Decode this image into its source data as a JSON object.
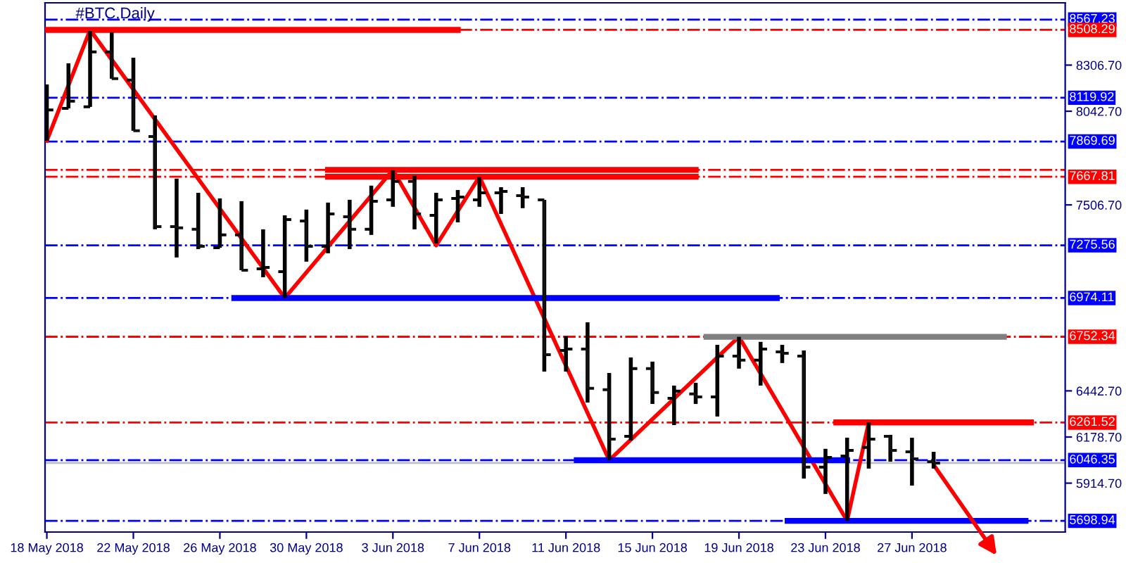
{
  "chart_data": {
    "type": "candlestick",
    "title": "#BTC,Daily",
    "x": [
      "2018-05-18",
      "2018-05-19",
      "2018-05-20",
      "2018-05-21",
      "2018-05-22",
      "2018-05-23",
      "2018-05-24",
      "2018-05-25",
      "2018-05-26",
      "2018-05-27",
      "2018-05-28",
      "2018-05-29",
      "2018-05-30",
      "2018-05-31",
      "2018-06-01",
      "2018-06-02",
      "2018-06-03",
      "2018-06-04",
      "2018-06-05",
      "2018-06-06",
      "2018-06-07",
      "2018-06-08",
      "2018-06-09",
      "2018-06-10",
      "2018-06-11",
      "2018-06-12",
      "2018-06-13",
      "2018-06-14",
      "2018-06-15",
      "2018-06-16",
      "2018-06-17",
      "2018-06-18",
      "2018-06-19",
      "2018-06-20",
      "2018-06-21",
      "2018-06-22",
      "2018-06-23",
      "2018-06-24",
      "2018-06-25",
      "2018-06-26",
      "2018-06-27",
      "2018-06-28"
    ],
    "ohlc": [
      [
        8043,
        8196,
        7874,
        8050
      ],
      [
        8059,
        8317,
        8059,
        8100
      ],
      [
        8068,
        8502,
        8068,
        8382
      ],
      [
        8382,
        8494,
        8229,
        8229
      ],
      [
        8221,
        8349,
        7931,
        7931
      ],
      [
        7898,
        8019,
        7367,
        7383
      ],
      [
        7383,
        7657,
        7206,
        7375
      ],
      [
        7367,
        7576,
        7254,
        7270
      ],
      [
        7262,
        7544,
        7262,
        7335
      ],
      [
        7335,
        7528,
        7133,
        7133
      ],
      [
        7141,
        7367,
        7093,
        7149
      ],
      [
        7125,
        7447,
        6974,
        7423
      ],
      [
        7415,
        7480,
        7182,
        7270
      ],
      [
        7270,
        7520,
        7230,
        7455
      ],
      [
        7439,
        7536,
        7254,
        7367
      ],
      [
        7367,
        7617,
        7335,
        7528
      ],
      [
        7536,
        7705,
        7496,
        7641
      ],
      [
        7641,
        7673,
        7367,
        7455
      ],
      [
        7447,
        7576,
        7286,
        7536
      ],
      [
        7544,
        7592,
        7407,
        7552
      ],
      [
        7536,
        7665,
        7496,
        7576
      ],
      [
        7576,
        7608,
        7455,
        7584
      ],
      [
        7560,
        7608,
        7488,
        7552
      ],
      [
        7536,
        7536,
        6553,
        6650
      ],
      [
        6674,
        6755,
        6553,
        6682
      ],
      [
        6682,
        6835,
        6376,
        6457
      ],
      [
        6449,
        6545,
        6046,
        6167
      ],
      [
        6183,
        6634,
        6159,
        6570
      ],
      [
        6570,
        6610,
        6368,
        6433
      ],
      [
        6400,
        6473,
        6247,
        6441
      ],
      [
        6425,
        6489,
        6368,
        6408
      ],
      [
        6408,
        6706,
        6296,
        6642
      ],
      [
        6642,
        6752,
        6570,
        6618
      ],
      [
        6618,
        6723,
        6473,
        6682
      ],
      [
        6666,
        6706,
        6602,
        6658
      ],
      [
        6642,
        6674,
        5941,
        6006
      ],
      [
        6006,
        6111,
        5853,
        6062
      ],
      [
        6070,
        6175,
        5699,
        6102
      ],
      [
        6119,
        6262,
        5998,
        6167
      ],
      [
        6183,
        6191,
        6038,
        6102
      ],
      [
        6094,
        6175,
        5901,
        6054
      ],
      [
        6038,
        6094,
        5998,
        6030
      ]
    ],
    "series": [
      {
        "type": "line",
        "color": "#ff0000",
        "x": [
          "2018-05-18",
          "2018-05-20",
          "2018-05-29",
          "2018-06-03",
          "2018-06-05",
          "2018-06-07",
          "2018-06-13",
          "2018-06-19",
          "2018-06-24",
          "2018-06-25"
        ],
        "values": [
          7874,
          8508,
          6974,
          7707,
          7275,
          7668,
          6046,
          6752,
          5699,
          6262
        ]
      },
      {
        "type": "line",
        "color": "#ff0000",
        "x": [
          "2018-05-18",
          "2018-06-06"
        ],
        "values": [
          8508,
          8508
        ]
      },
      {
        "type": "line",
        "color": "#ff0000",
        "x": [
          "2018-05-31",
          "2018-06-17"
        ],
        "values": [
          7707,
          7707
        ]
      },
      {
        "type": "line",
        "color": "#ff0000",
        "x": [
          "2018-05-31",
          "2018-06-17"
        ],
        "values": [
          7668,
          7668
        ]
      },
      {
        "type": "line",
        "color": "#0000ff",
        "x": [
          "2018-05-26T16:00",
          "2018-06-20T18:00"
        ],
        "values": [
          6974,
          6974
        ]
      },
      {
        "type": "line",
        "color": "#808080",
        "x": [
          "2018-06-17T12:00",
          "2018-07-01T06:00"
        ],
        "values": [
          6752,
          6752
        ]
      },
      {
        "type": "line",
        "color": "#ff0000",
        "x": [
          "2018-06-23T12:00",
          "2018-07-02T12:00"
        ],
        "values": [
          6262,
          6262
        ]
      },
      {
        "type": "line",
        "color": "#0000ff",
        "x": [
          "2018-06-11T12:00",
          "2018-06-24"
        ],
        "values": [
          6046,
          6046
        ]
      },
      {
        "type": "line",
        "color": "#0000ff",
        "x": [
          "2018-06-21T06:00",
          "2018-07-02T06:00"
        ],
        "values": [
          5699,
          5699
        ]
      }
    ],
    "ref_lines": [
      {
        "axis": "y",
        "value": 8567.23,
        "label": "8567.23",
        "color": "#0000ff",
        "line_style": "dashdot"
      },
      {
        "axis": "y",
        "value": 8508.29,
        "label": "8508.29",
        "color": "#ff0000",
        "line_style": "dashdot"
      },
      {
        "axis": "y",
        "value": 8119.92,
        "label": "8119.92",
        "color": "#0000ff",
        "line_style": "dashdot"
      },
      {
        "axis": "y",
        "value": 7869.69,
        "label": "7869.69",
        "color": "#0000ff",
        "line_style": "dashdot"
      },
      {
        "axis": "y",
        "value": 7707.37,
        "label": null,
        "color": "#ff0000",
        "line_style": "dashdot"
      },
      {
        "axis": "y",
        "value": 7667.81,
        "label": "7667.81",
        "color": "#ff0000",
        "line_style": "dashdot"
      },
      {
        "axis": "y",
        "value": 7275.56,
        "label": "7275.56",
        "color": "#0000ff",
        "line_style": "dashdot"
      },
      {
        "axis": "y",
        "value": 6974.11,
        "label": "6974.11",
        "color": "#0000ff",
        "line_style": "dashdot"
      },
      {
        "axis": "y",
        "value": 6752.34,
        "label": "6752.34",
        "color": "#ff0000",
        "line_style": "dashdot"
      },
      {
        "axis": "y",
        "value": 6261.52,
        "label": "6261.52",
        "color": "#ff0000",
        "line_style": "dashdot"
      },
      {
        "axis": "y",
        "value": 6046.35,
        "label": "6046.35",
        "color": "#0000ff",
        "line_style": "dashdot"
      },
      {
        "axis": "y",
        "value": 6030,
        "label": null,
        "color": "#c0c0c0",
        "line_style": "solid"
      },
      {
        "axis": "y",
        "value": 5698.94,
        "label": "5698.94",
        "color": "#0000ff",
        "line_style": "dashdot"
      }
    ],
    "xlim": [
      "2018-05-17T22:00",
      "2018-07-04T02:00"
    ],
    "xticks": [
      {
        "value": "2018-05-18",
        "label": "18 May 2018"
      },
      {
        "value": "2018-05-22",
        "label": "22 May 2018"
      },
      {
        "value": "2018-05-26",
        "label": "26 May 2018"
      },
      {
        "value": "2018-05-30",
        "label": "30 May 2018"
      },
      {
        "value": "2018-06-03",
        "label": "3 Jun 2018"
      },
      {
        "value": "2018-06-07",
        "label": "7 Jun 2018"
      },
      {
        "value": "2018-06-11",
        "label": "11 Jun 2018"
      },
      {
        "value": "2018-06-15",
        "label": "15 Jun 2018"
      },
      {
        "value": "2018-06-19",
        "label": "19 Jun 2018"
      },
      {
        "value": "2018-06-23",
        "label": "23 Jun 2018"
      },
      {
        "value": "2018-06-27",
        "label": "27 Jun 2018"
      }
    ],
    "ylim": [
      5635,
      8663
    ],
    "yticks": [
      {
        "value": 5914.7,
        "label": "5914.70"
      },
      {
        "value": 6178.7,
        "label": "6178.70"
      },
      {
        "value": 6442.7,
        "label": "6442.70"
      },
      {
        "value": 7506.7,
        "label": "7506.70"
      },
      {
        "value": 8042.7,
        "label": "8042.70"
      },
      {
        "value": 8306.7,
        "label": "8306.70"
      }
    ],
    "grid": false,
    "marker": "none",
    "line_style": "solid"
  }
}
